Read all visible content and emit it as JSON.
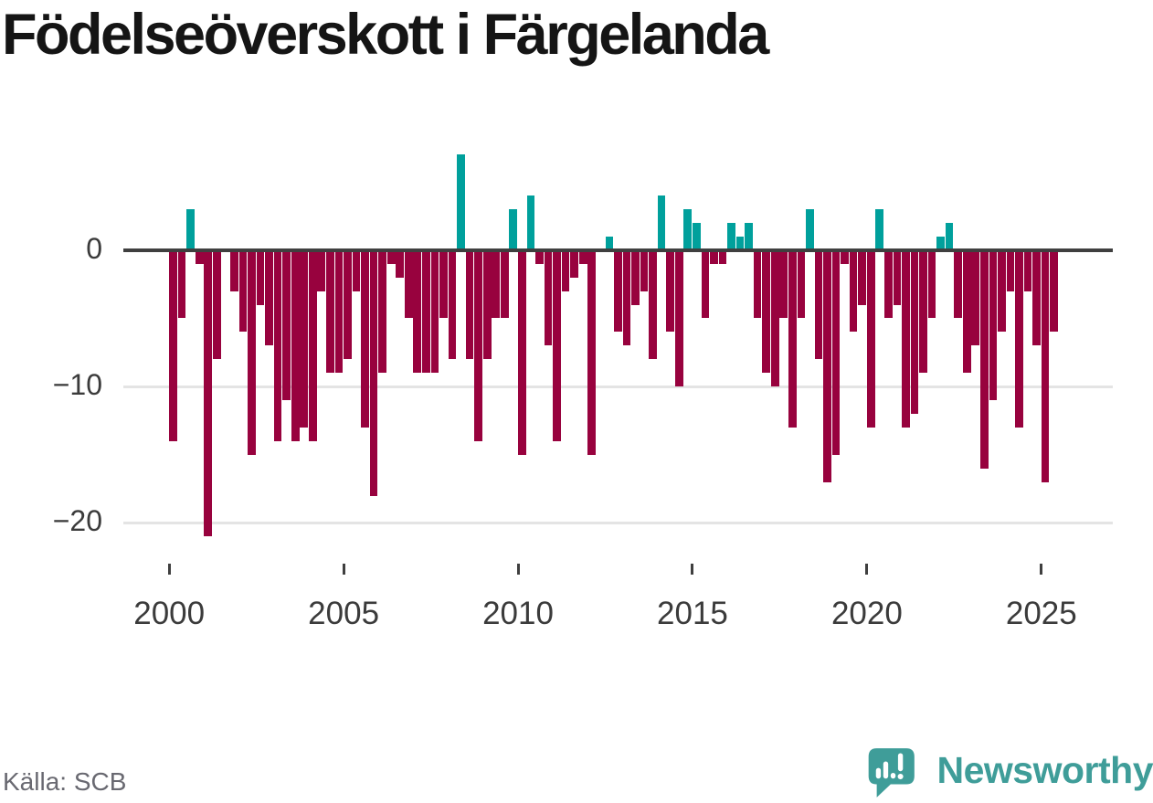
{
  "title": "Födelseöverskott i Färgelanda",
  "source": "Källa: SCB",
  "branding": {
    "name": "Newsworthy",
    "icon": "bar-chart-speech-bubble-icon"
  },
  "colors": {
    "positive_bar": "#00a09c",
    "negative_bar": "#98023e",
    "zero_line": "#3f3f3f",
    "gridline": "#e4e4e4",
    "axis_text": "#3b3b3b",
    "title_text": "#151515",
    "source_text": "#696971",
    "brand_teal": "#3f9d99"
  },
  "chart_data": {
    "type": "bar",
    "title": "Födelseöverskott i Färgelanda",
    "frequency": "quarterly",
    "x": [
      "2000Q1",
      "2000Q2",
      "2000Q3",
      "2000Q4",
      "2001Q1",
      "2001Q2",
      "2001Q3",
      "2001Q4",
      "2002Q1",
      "2002Q2",
      "2002Q3",
      "2002Q4",
      "2003Q1",
      "2003Q2",
      "2003Q3",
      "2003Q4",
      "2004Q1",
      "2004Q2",
      "2004Q3",
      "2004Q4",
      "2005Q1",
      "2005Q2",
      "2005Q3",
      "2005Q4",
      "2006Q1",
      "2006Q2",
      "2006Q3",
      "2006Q4",
      "2007Q1",
      "2007Q2",
      "2007Q3",
      "2007Q4",
      "2008Q1",
      "2008Q2",
      "2008Q3",
      "2008Q4",
      "2009Q1",
      "2009Q2",
      "2009Q3",
      "2009Q4",
      "2010Q1",
      "2010Q2",
      "2010Q3",
      "2010Q4",
      "2011Q1",
      "2011Q2",
      "2011Q3",
      "2011Q4",
      "2012Q1",
      "2012Q2",
      "2012Q3",
      "2012Q4",
      "2013Q1",
      "2013Q2",
      "2013Q3",
      "2013Q4",
      "2014Q1",
      "2014Q2",
      "2014Q3",
      "2014Q4",
      "2015Q1",
      "2015Q2",
      "2015Q3",
      "2015Q4",
      "2016Q1",
      "2016Q2",
      "2016Q3",
      "2016Q4",
      "2017Q1",
      "2017Q2",
      "2017Q3",
      "2017Q4",
      "2018Q1",
      "2018Q2",
      "2018Q3",
      "2018Q4",
      "2019Q1",
      "2019Q2",
      "2019Q3",
      "2019Q4",
      "2020Q1",
      "2020Q2",
      "2020Q3",
      "2020Q4",
      "2021Q1",
      "2021Q2",
      "2021Q3",
      "2021Q4",
      "2022Q1",
      "2022Q2",
      "2022Q3",
      "2022Q4",
      "2023Q1",
      "2023Q2",
      "2023Q3",
      "2023Q4",
      "2024Q1",
      "2024Q2",
      "2024Q3",
      "2024Q4",
      "2025Q1",
      "2025Q2"
    ],
    "values": [
      -14,
      -5,
      3,
      -1,
      -21,
      -8,
      0,
      -3,
      -6,
      -15,
      -4,
      -7,
      -14,
      -11,
      -14,
      -13,
      -14,
      -3,
      -9,
      -9,
      -8,
      -3,
      -13,
      -18,
      -9,
      -1,
      -2,
      -5,
      -9,
      -9,
      -9,
      -5,
      -8,
      7,
      -8,
      -14,
      -8,
      -5,
      -5,
      3,
      -15,
      4,
      -1,
      -7,
      -14,
      -3,
      -2,
      -1,
      -15,
      0,
      1,
      -6,
      -7,
      -4,
      -3,
      -8,
      4,
      -6,
      -10,
      3,
      2,
      -5,
      -1,
      -1,
      2,
      1,
      2,
      -5,
      -9,
      -10,
      -5,
      -13,
      -5,
      3,
      -8,
      -17,
      -15,
      -1,
      -6,
      -4,
      -13,
      3,
      -5,
      -4,
      -13,
      -12,
      -9,
      -5,
      1,
      2,
      -5,
      -9,
      -7,
      -16,
      -11,
      -6,
      -3,
      -13,
      -3,
      -7,
      -17,
      -6
    ],
    "x_ticks": [
      {
        "label": "2000",
        "bar_index": 0
      },
      {
        "label": "2005",
        "bar_index": 20
      },
      {
        "label": "2010",
        "bar_index": 40
      },
      {
        "label": "2015",
        "bar_index": 60
      },
      {
        "label": "2020",
        "bar_index": 80
      },
      {
        "label": "2025",
        "bar_index": 100
      }
    ],
    "y_ticks": [
      {
        "label": "0",
        "value": 0
      },
      {
        "label": "−10",
        "value": -10
      },
      {
        "label": "−20",
        "value": -20
      }
    ],
    "ylim": [
      -23,
      8
    ],
    "grid": "horizontal",
    "legend": "none"
  }
}
